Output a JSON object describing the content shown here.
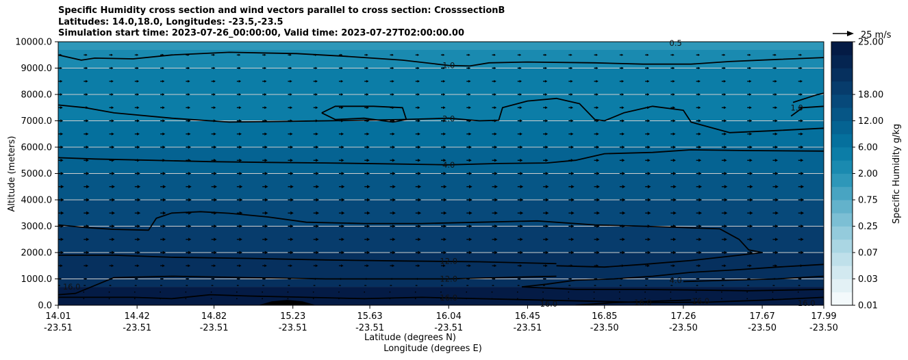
{
  "title": {
    "line1": "Specific Humidity cross section and wind vectors parallel to cross section: CrosssectionB",
    "line2": "Latitudes: 14.0,18.0, Longitudes: -23.5,-23.5",
    "line3": "Simulation start time: 2023-07-26_00:00:00, Valid time: 2023-07-27T02:00:00.00"
  },
  "chart_data": {
    "type": "heatmap",
    "xlabel_primary": "Latitude (degrees N)",
    "xlabel_secondary": "Longitude (degrees E)",
    "ylabel": "Altitude (meters)",
    "ylim": [
      0,
      10000
    ],
    "yticks": [
      "0.0",
      "1000.0",
      "2000.0",
      "3000.0",
      "4000.0",
      "5000.0",
      "6000.0",
      "7000.0",
      "8000.0",
      "9000.0",
      "10000.0"
    ],
    "ytick_values": [
      0,
      1000,
      2000,
      3000,
      4000,
      5000,
      6000,
      7000,
      8000,
      9000,
      10000
    ],
    "xlim": [
      14.01,
      17.99
    ],
    "x_ticks": [
      {
        "lat": "14.01",
        "lon": "-23.51"
      },
      {
        "lat": "14.42",
        "lon": "-23.51"
      },
      {
        "lat": "14.82",
        "lon": "-23.51"
      },
      {
        "lat": "15.23",
        "lon": "-23.51"
      },
      {
        "lat": "15.63",
        "lon": "-23.51"
      },
      {
        "lat": "16.04",
        "lon": "-23.51"
      },
      {
        "lat": "16.45",
        "lon": "-23.51"
      },
      {
        "lat": "16.85",
        "lon": "-23.50"
      },
      {
        "lat": "17.26",
        "lon": "-23.50"
      },
      {
        "lat": "17.67",
        "lon": "-23.50"
      },
      {
        "lat": "17.99",
        "lon": "-23.50"
      }
    ],
    "x_tick_values": [
      14.01,
      14.42,
      14.82,
      15.23,
      15.63,
      16.04,
      16.45,
      16.85,
      17.26,
      17.67,
      17.99
    ],
    "grid": "horizontal",
    "colorbar": {
      "label": "Specific Humidity g/kg",
      "tick_labels": [
        "0.01",
        "0.03",
        "0.07",
        "0.25",
        "0.75",
        "2.00",
        "6.00",
        "12.00",
        "18.00",
        "25.00"
      ],
      "tick_levels": [
        0,
        2,
        4,
        6,
        8,
        10,
        12,
        14,
        16,
        18
      ],
      "colors": [
        "#f3f9fb",
        "#e3f1f5",
        "#d2e9f0",
        "#bfe0ea",
        "#aad6e3",
        "#94cbdc",
        "#7cbfd4",
        "#63b2cb",
        "#48a4c2",
        "#2e97b9",
        "#1a8ab0",
        "#0c7da7",
        "#05709d",
        "#056392",
        "#065686",
        "#07497a",
        "#073c6c",
        "#06305e",
        "#052551",
        "#041b45"
      ]
    },
    "quiver_key": {
      "label": "25 m/s",
      "speed": 25
    },
    "wind_rows_m": [
      250,
      500,
      750,
      1000,
      1500,
      2000,
      2500,
      3000,
      3500,
      4000,
      4500,
      5000,
      5500,
      6000,
      6500,
      7000,
      7500,
      8000,
      8500,
      9000,
      9500
    ],
    "wind_speed_rows_ms": [
      0.5,
      1.5,
      4,
      6,
      8,
      9.5,
      9.5,
      9.5,
      10,
      10,
      10,
      9.5,
      9,
      9,
      8.5,
      8.5,
      8,
      7.5,
      7.5,
      7,
      6.5
    ],
    "wind_columns": 31,
    "background_bands": [
      {
        "from": 0,
        "to": 700,
        "color": "#041b45"
      },
      {
        "from": 700,
        "to": 2000,
        "color": "#06305e"
      },
      {
        "from": 2000,
        "to": 3000,
        "color": "#073c6c"
      },
      {
        "from": 3000,
        "to": 4000,
        "color": "#07497a"
      },
      {
        "from": 4000,
        "to": 5000,
        "color": "#065686"
      },
      {
        "from": 5000,
        "to": 6000,
        "color": "#056392"
      },
      {
        "from": 6000,
        "to": 7000,
        "color": "#05709d"
      },
      {
        "from": 7000,
        "to": 9000,
        "color": "#0c7da7"
      },
      {
        "from": 9000,
        "to": 9700,
        "color": "#1a8ab0"
      },
      {
        "from": 9700,
        "to": 10000,
        "color": "#2e97b9"
      }
    ],
    "contours": [
      {
        "level": "1.0",
        "points": [
          [
            14.01,
            9500
          ],
          [
            14.13,
            9300
          ],
          [
            14.2,
            9380
          ],
          [
            14.4,
            9350
          ],
          [
            14.6,
            9500
          ],
          [
            14.9,
            9600
          ],
          [
            15.25,
            9550
          ],
          [
            15.5,
            9450
          ],
          [
            15.8,
            9300
          ],
          [
            16.04,
            9100
          ],
          [
            16.15,
            9080
          ],
          [
            16.25,
            9200
          ],
          [
            16.45,
            9230
          ],
          [
            16.8,
            9200
          ],
          [
            17.05,
            9150
          ],
          [
            17.3,
            9150
          ],
          [
            17.5,
            9250
          ],
          [
            17.75,
            9330
          ],
          [
            17.99,
            9400
          ]
        ]
      },
      {
        "level": "2.0",
        "points": [
          [
            14.01,
            7600
          ],
          [
            14.15,
            7500
          ],
          [
            14.3,
            7300
          ],
          [
            14.6,
            7100
          ],
          [
            14.9,
            6950
          ],
          [
            15.2,
            6980
          ],
          [
            15.5,
            7010
          ],
          [
            15.8,
            7050
          ],
          [
            16.04,
            7100
          ],
          [
            16.2,
            7000
          ],
          [
            16.3,
            7020
          ],
          [
            16.32,
            7500
          ],
          [
            16.45,
            7750
          ],
          [
            16.6,
            7850
          ],
          [
            16.72,
            7650
          ],
          [
            16.8,
            7050
          ],
          [
            16.85,
            7000
          ],
          [
            16.95,
            7300
          ],
          [
            17.1,
            7550
          ],
          [
            17.26,
            7400
          ],
          [
            17.3,
            6950
          ],
          [
            17.5,
            6550
          ],
          [
            17.75,
            6630
          ],
          [
            17.99,
            6720
          ]
        ]
      },
      {
        "level": "2.0",
        "points": [
          [
            15.38,
            7300
          ],
          [
            15.45,
            7550
          ],
          [
            15.65,
            7550
          ],
          [
            15.8,
            7500
          ],
          [
            15.82,
            7050
          ],
          [
            15.75,
            6950
          ],
          [
            15.6,
            7100
          ],
          [
            15.45,
            7050
          ],
          [
            15.38,
            7300
          ]
        ]
      },
      {
        "level": "1.0",
        "points": [
          [
            17.83,
            7700
          ],
          [
            17.95,
            7980
          ],
          [
            17.99,
            8050
          ]
        ]
      },
      {
        "level": "1.0",
        "points": [
          [
            17.82,
            7180
          ],
          [
            17.88,
            7500
          ],
          [
            17.99,
            7550
          ]
        ]
      },
      {
        "level": "4.0",
        "points": [
          [
            14.01,
            5600
          ],
          [
            14.2,
            5550
          ],
          [
            14.5,
            5500
          ],
          [
            14.8,
            5450
          ],
          [
            15.1,
            5420
          ],
          [
            15.4,
            5400
          ],
          [
            15.7,
            5370
          ],
          [
            16.04,
            5330
          ],
          [
            16.3,
            5380
          ],
          [
            16.55,
            5400
          ],
          [
            16.7,
            5500
          ],
          [
            16.85,
            5750
          ],
          [
            17.1,
            5800
          ],
          [
            17.3,
            5900
          ],
          [
            17.6,
            5870
          ],
          [
            17.99,
            5850
          ]
        ]
      },
      {
        "level": "8.0",
        "points": [
          [
            14.01,
            3050
          ],
          [
            14.15,
            2950
          ],
          [
            14.3,
            2880
          ],
          [
            14.48,
            2850
          ],
          [
            14.52,
            3300
          ],
          [
            14.6,
            3500
          ],
          [
            14.75,
            3550
          ],
          [
            14.9,
            3490
          ],
          [
            15.1,
            3350
          ],
          [
            15.3,
            3150
          ],
          [
            15.6,
            3100
          ],
          [
            15.9,
            3100
          ],
          [
            16.2,
            3150
          ],
          [
            16.5,
            3200
          ],
          [
            16.8,
            3050
          ],
          [
            17.05,
            3000
          ],
          [
            17.25,
            2950
          ],
          [
            17.45,
            2900
          ],
          [
            17.55,
            2500
          ],
          [
            17.6,
            2100
          ],
          [
            17.67,
            2000
          ],
          [
            17.55,
            1900
          ],
          [
            17.3,
            1700
          ],
          [
            17.05,
            1550
          ],
          [
            16.85,
            1450
          ],
          [
            16.6,
            1500
          ]
        ]
      },
      {
        "level": "12.0",
        "points": [
          [
            14.01,
            1900
          ],
          [
            14.3,
            1900
          ],
          [
            14.6,
            1820
          ],
          [
            15.0,
            1780
          ],
          [
            15.4,
            1720
          ],
          [
            15.8,
            1680
          ],
          [
            16.2,
            1650
          ],
          [
            16.6,
            1580
          ]
        ]
      },
      {
        "level": "12.0",
        "points": [
          [
            14.01,
            400
          ],
          [
            14.1,
            450
          ],
          [
            14.3,
            1050
          ],
          [
            14.6,
            1100
          ],
          [
            15.0,
            1050
          ],
          [
            15.4,
            1000
          ],
          [
            15.8,
            1000
          ],
          [
            16.04,
            1000
          ],
          [
            16.3,
            1050
          ],
          [
            16.6,
            1100
          ]
        ]
      },
      {
        "level": "4.0",
        "points": [
          [
            16.42,
            700
          ],
          [
            16.55,
            800
          ],
          [
            16.7,
            950
          ],
          [
            16.9,
            1000
          ],
          [
            17.1,
            1100
          ],
          [
            17.3,
            1250
          ],
          [
            17.55,
            1350
          ],
          [
            17.75,
            1450
          ],
          [
            17.99,
            1550
          ]
        ]
      },
      {
        "level": "4.0",
        "points": [
          [
            16.42,
            700
          ],
          [
            16.7,
            600
          ],
          [
            17.0,
            600
          ],
          [
            17.3,
            580
          ],
          [
            17.6,
            550
          ],
          [
            17.99,
            600
          ]
        ]
      },
      {
        "level": "4.0",
        "points": [
          [
            17.26,
            900
          ],
          [
            17.5,
            950
          ],
          [
            17.75,
            1000
          ],
          [
            17.99,
            1100
          ]
        ]
      },
      {
        "level": "16.0",
        "points": [
          [
            14.01,
            300
          ],
          [
            14.4,
            300
          ],
          [
            14.6,
            250
          ],
          [
            14.8,
            400
          ],
          [
            15.0,
            350
          ],
          [
            15.3,
            300
          ],
          [
            15.6,
            250
          ],
          [
            15.9,
            300
          ],
          [
            16.2,
            250
          ],
          [
            16.5,
            200
          ],
          [
            16.8,
            150
          ],
          [
            17.1,
            100
          ],
          [
            17.4,
            120
          ],
          [
            17.7,
            200
          ],
          [
            17.99,
            300
          ]
        ]
      },
      {
        "level": "16.0",
        "points": [
          [
            16.7,
            0
          ],
          [
            16.9,
            100
          ],
          [
            17.1,
            150
          ],
          [
            17.3,
            200
          ]
        ]
      }
    ],
    "contour_labels": [
      {
        "text": "1.0",
        "x": 16.04,
        "y": 9100
      },
      {
        "text": "2.0",
        "x": 16.04,
        "y": 7080
      },
      {
        "text": "4.0",
        "x": 16.04,
        "y": 5330
      },
      {
        "text": "12.0",
        "x": 16.04,
        "y": 1680
      },
      {
        "text": "12.0",
        "x": 16.04,
        "y": 1000
      },
      {
        "text": "16.0",
        "x": 16.04,
        "y": 280
      },
      {
        "text": "0.5",
        "x": 17.22,
        "y": 9950
      },
      {
        "text": "1.0",
        "x": 17.85,
        "y": 7500
      },
      {
        "text": "16.0",
        "x": 14.08,
        "y": 700
      },
      {
        "text": "4.0",
        "x": 17.22,
        "y": 950
      },
      {
        "text": "16.0",
        "x": 16.56,
        "y": 50
      },
      {
        "text": "16.0",
        "x": 17.05,
        "y": 100
      },
      {
        "text": "16.0",
        "x": 17.35,
        "y": 150
      },
      {
        "text": "16.0",
        "x": 17.9,
        "y": 80
      }
    ],
    "terrain": [
      [
        15.05,
        0
      ],
      [
        15.12,
        150
      ],
      [
        15.2,
        200
      ],
      [
        15.28,
        150
      ],
      [
        15.35,
        0
      ]
    ]
  }
}
